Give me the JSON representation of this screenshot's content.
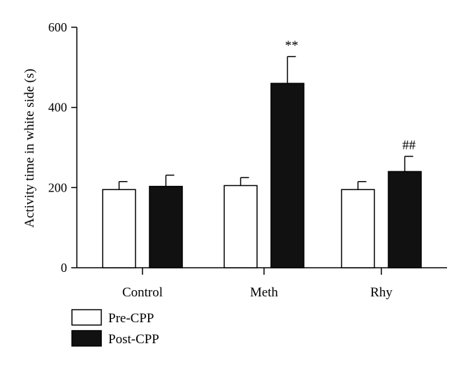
{
  "chart_data": {
    "type": "bar",
    "title": "",
    "xlabel": "",
    "ylabel": "Activity time in white side (s)",
    "ylim": [
      0,
      600
    ],
    "yticks": [
      0,
      200,
      400,
      600
    ],
    "grid": false,
    "legend_position": "bottom-left",
    "categories": [
      "Control",
      "Meth",
      "Rhy"
    ],
    "series": [
      {
        "name": "Pre-CPP",
        "color": "#ffffff",
        "values": [
          195,
          205,
          195
        ],
        "errors": [
          20,
          20,
          20
        ]
      },
      {
        "name": "Post-CPP",
        "color": "#111111",
        "values": [
          203,
          460,
          240
        ],
        "errors": [
          28,
          67,
          38
        ]
      }
    ],
    "annotations": [
      {
        "text": "**",
        "category": "Meth",
        "series": "Post-CPP"
      },
      {
        "text": "##",
        "category": "Rhy",
        "series": "Post-CPP"
      }
    ]
  }
}
